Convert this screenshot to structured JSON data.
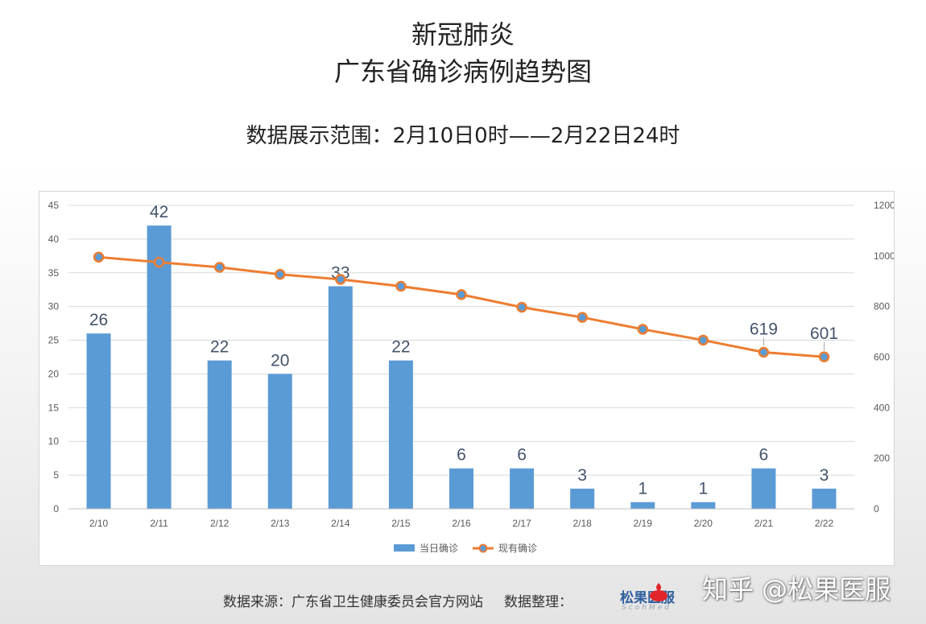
{
  "header": {
    "title_line1": "新冠肺炎",
    "title_line2": "广东省确诊病例趋势图",
    "subtitle": "数据展示范围：2月10日0时——2月22日24时"
  },
  "footer": {
    "source": "数据来源：广东省卫生健康委员会官方网站",
    "organizer": "数据整理：",
    "brand": "松果医服",
    "brand_sub": "ScohMed"
  },
  "watermark": "知乎 @松果医服",
  "colors": {
    "bar": "#5b9bd5",
    "line": "#ed7d31",
    "grid": "#d9d9d9"
  },
  "chart_data": {
    "type": "bar",
    "categories": [
      "2/10",
      "2/11",
      "2/12",
      "2/13",
      "2/14",
      "2/15",
      "2/16",
      "2/17",
      "2/18",
      "2/19",
      "2/20",
      "2/21",
      "2/22"
    ],
    "series": [
      {
        "name": "当日确诊",
        "type": "bar",
        "axis": "left",
        "values": [
          26,
          42,
          22,
          20,
          33,
          22,
          6,
          6,
          3,
          1,
          1,
          6,
          3
        ]
      },
      {
        "name": "现有确诊",
        "type": "line",
        "axis": "right",
        "values": [
          995,
          975,
          955,
          927,
          907,
          880,
          847,
          797,
          757,
          710,
          667,
          619,
          601
        ]
      }
    ],
    "data_labels": {
      "bars": [
        26,
        42,
        22,
        20,
        33,
        22,
        6,
        6,
        3,
        1,
        1,
        6,
        3
      ],
      "line": [
        {
          "index": 11,
          "text": "619"
        },
        {
          "index": 12,
          "text": "601"
        }
      ]
    },
    "y_left": {
      "min": 0,
      "max": 45,
      "ticks": [
        0,
        5,
        10,
        15,
        20,
        25,
        30,
        35,
        40,
        45
      ]
    },
    "y_right": {
      "min": 0,
      "max": 1200,
      "ticks": [
        0,
        200,
        400,
        600,
        800,
        1000,
        1200
      ]
    },
    "grid": true,
    "legend": "bottom"
  }
}
